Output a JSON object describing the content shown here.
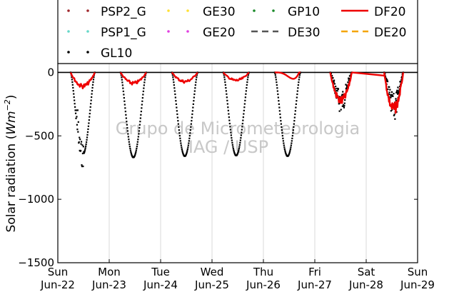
{
  "chart_data": {
    "type": "scatter",
    "title": "",
    "ylabel": "Solar radiation (W m^-2)",
    "ylabel_parts": {
      "main": "Solar radiation (",
      "unit": "Wm",
      "exp": "−2",
      "close": ")"
    },
    "xlabel": "",
    "ylim": [
      -1500,
      70
    ],
    "xlim": [
      0,
      7
    ],
    "yticks": [
      {
        "value": 0,
        "label": "0"
      },
      {
        "value": -500,
        "label": "−500"
      },
      {
        "value": -1000,
        "label": "−1000"
      },
      {
        "value": -1500,
        "label": "−1500"
      }
    ],
    "xticks": [
      {
        "value": 0,
        "day": "Sun",
        "date": "Jun-22"
      },
      {
        "value": 1,
        "day": "Mon",
        "date": "Jun-23"
      },
      {
        "value": 2,
        "day": "Tue",
        "date": "Jun-24"
      },
      {
        "value": 3,
        "day": "Wed",
        "date": "Jun-25"
      },
      {
        "value": 4,
        "day": "Thu",
        "date": "Jun-26"
      },
      {
        "value": 5,
        "day": "Fri",
        "date": "Jun-27"
      },
      {
        "value": 6,
        "day": "Sat",
        "date": "Jun-28"
      },
      {
        "value": 7,
        "day": "Sun",
        "date": "Jun-29"
      }
    ],
    "grid": true,
    "legend_position": "top",
    "watermark": [
      "Grupo de Micrometeorologia",
      "IAG / USP"
    ],
    "legend": [
      {
        "name": "PSP2_G",
        "color": "#a0282d",
        "style": "dots"
      },
      {
        "name": "GE30",
        "color": "#ffe033",
        "style": "dots"
      },
      {
        "name": "GP10",
        "color": "#1a8a2a",
        "style": "dots"
      },
      {
        "name": "DF20",
        "color": "#ee0000",
        "style": "line"
      },
      {
        "name": "PSP1_G",
        "color": "#66d8c8",
        "style": "dots"
      },
      {
        "name": "GE20",
        "color": "#e040e0",
        "style": "dots"
      },
      {
        "name": "DE30",
        "color": "#555555",
        "style": "dash"
      },
      {
        "name": "DE20",
        "color": "#f5a500",
        "style": "dash"
      },
      {
        "name": "GL10",
        "color": "#000000",
        "style": "dots"
      }
    ],
    "series": [
      {
        "name": "GL10",
        "color": "#000000",
        "style": "dots",
        "days": [
          {
            "start": 0.25,
            "end": 0.72,
            "peak": -650,
            "min_spike": -750
          },
          {
            "start": 1.22,
            "end": 1.72,
            "peak": -670
          },
          {
            "start": 2.22,
            "end": 2.72,
            "peak": -660
          },
          {
            "start": 3.22,
            "end": 3.72,
            "peak": -655
          },
          {
            "start": 4.22,
            "end": 4.72,
            "peak": -660
          },
          {
            "start": 5.3,
            "end": 5.72,
            "peak": -270
          },
          {
            "start": 6.35,
            "end": 6.72,
            "peak": -330
          }
        ]
      },
      {
        "name": "DF20",
        "color": "#ee0000",
        "style": "line",
        "days": [
          {
            "start": 0.25,
            "end": 0.72,
            "peak": -120
          },
          {
            "start": 1.22,
            "end": 1.72,
            "peak": -95
          },
          {
            "start": 2.22,
            "end": 2.72,
            "peak": -80
          },
          {
            "start": 3.22,
            "end": 3.72,
            "peak": -70
          },
          {
            "start": 4.22,
            "end": 4.72,
            "peak": -165
          },
          {
            "start": 5.3,
            "end": 5.72,
            "peak": -250
          },
          {
            "start": 6.35,
            "end": 6.72,
            "peak": -320
          }
        ]
      }
    ]
  }
}
